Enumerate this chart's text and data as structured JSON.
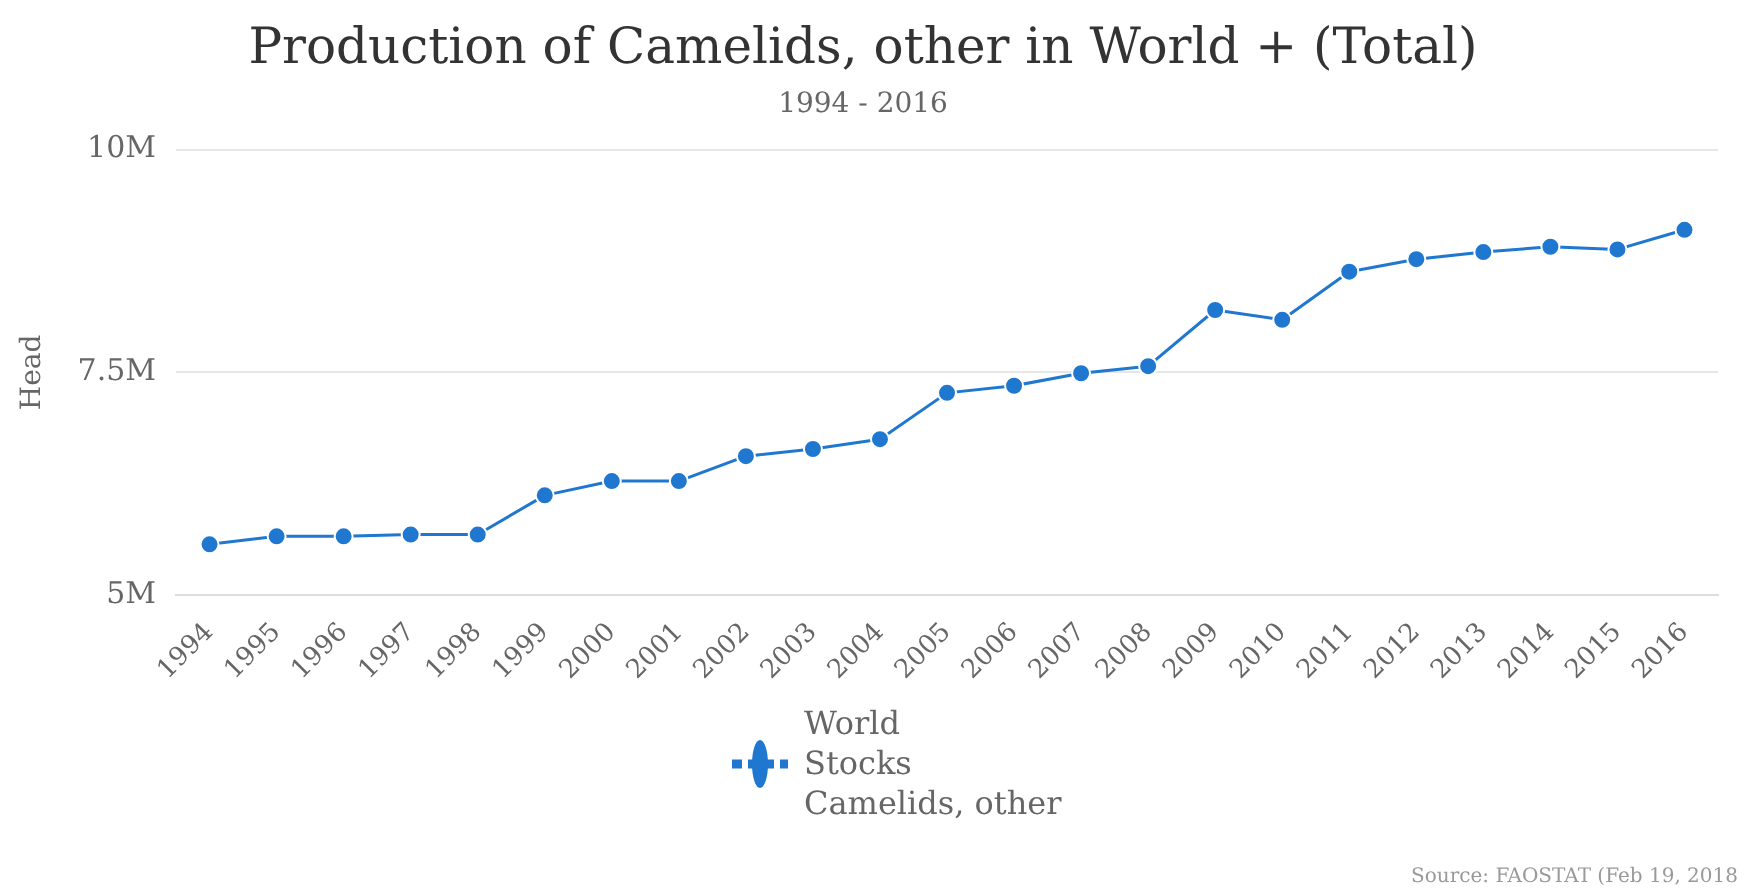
{
  "chart_data": {
    "type": "line",
    "title": "Production of Camelids, other in World + (Total)",
    "subtitle": "1994 - 2016",
    "ylabel": "Head",
    "categories": [
      "1994",
      "1995",
      "1996",
      "1997",
      "1998",
      "1999",
      "2000",
      "2001",
      "2002",
      "2003",
      "2004",
      "2005",
      "2006",
      "2007",
      "2008",
      "2009",
      "2010",
      "2011",
      "2012",
      "2013",
      "2014",
      "2015",
      "2016"
    ],
    "series": [
      {
        "name": "World\nStocks\nCamelids, other",
        "color": "#1f77d0",
        "values": [
          5570000,
          5660000,
          5660000,
          5680000,
          5680000,
          6120000,
          6280000,
          6280000,
          6560000,
          6640000,
          6750000,
          7270000,
          7350000,
          7490000,
          7570000,
          8200000,
          8090000,
          8630000,
          8770000,
          8850000,
          8910000,
          8880000,
          9100000
        ]
      }
    ],
    "ylim": [
      5000000,
      10000000
    ],
    "yticks": [
      {
        "value": 5000000,
        "label": "5M"
      },
      {
        "value": 7500000,
        "label": "7.5M"
      },
      {
        "value": 10000000,
        "label": "10M"
      }
    ],
    "grid": "y",
    "legend": "bottom",
    "marker": "circle",
    "line_style": "solid",
    "annotations": [
      "Source: FAOSTAT (Feb 19, 2018"
    ]
  }
}
